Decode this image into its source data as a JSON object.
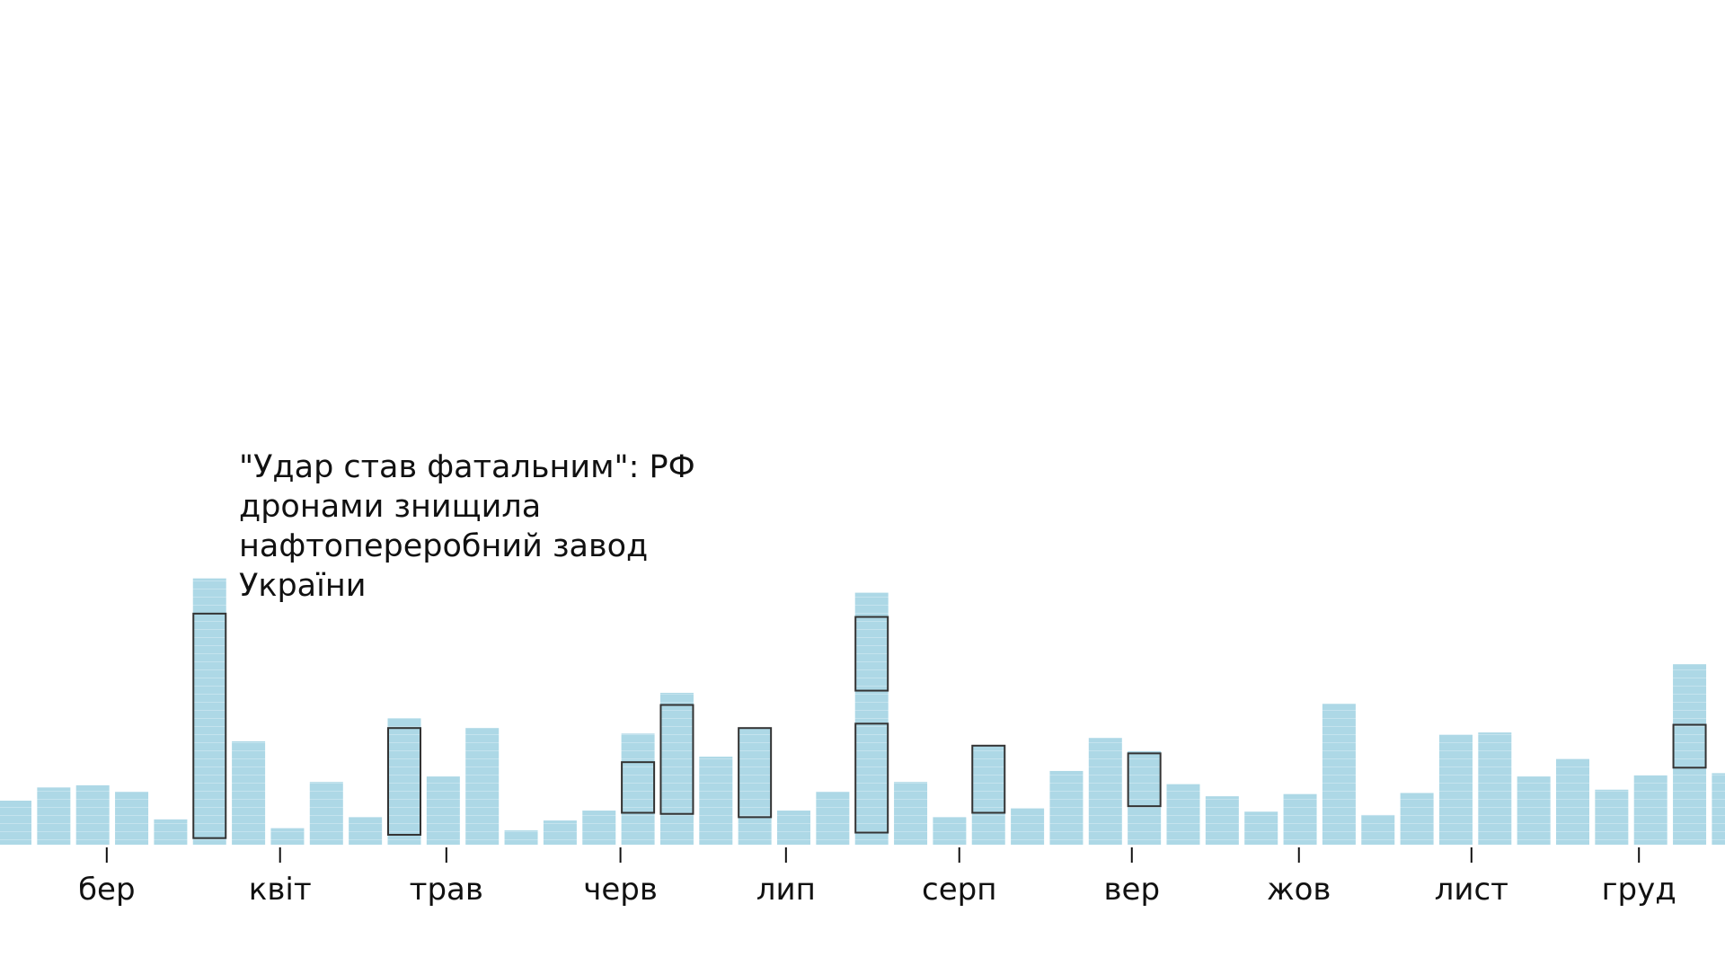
{
  "chart_data": {
    "type": "bar",
    "title": "",
    "xlabel": "",
    "ylabel": "",
    "bar_color": "#add8e6",
    "highlight_stroke": "#333333",
    "values": [
      40,
      52,
      54,
      48,
      23,
      242,
      94,
      15,
      57,
      25,
      115,
      62,
      106,
      13,
      22,
      31,
      101,
      138,
      80,
      106,
      31,
      48,
      229,
      57,
      25,
      90,
      33,
      67,
      97,
      85,
      55,
      44,
      30,
      46,
      128,
      27,
      47,
      100,
      102,
      62,
      78,
      50,
      63,
      164,
      65
    ],
    "highlights": [
      {
        "bar": 5,
        "from": 6,
        "to": 210
      },
      {
        "bar": 10,
        "from": 9,
        "to": 106
      },
      {
        "bar": 16,
        "from": 29,
        "to": 75
      },
      {
        "bar": 17,
        "from": 28,
        "to": 127
      },
      {
        "bar": 19,
        "from": 25,
        "to": 106
      },
      {
        "bar": 22,
        "from": 140,
        "to": 207
      },
      {
        "bar": 22,
        "from": 11,
        "to": 110
      },
      {
        "bar": 25,
        "from": 29,
        "to": 90
      },
      {
        "bar": 29,
        "from": 35,
        "to": 83
      },
      {
        "bar": 43,
        "from": 70,
        "to": 109
      }
    ],
    "ticks": [
      {
        "label": "бер",
        "at": 2.36
      },
      {
        "label": "квіт",
        "at": 6.81
      },
      {
        "label": "трав",
        "at": 11.08
      },
      {
        "label": "черв",
        "at": 15.55
      },
      {
        "label": "лип",
        "at": 19.8
      },
      {
        "label": "серп",
        "at": 24.25
      },
      {
        "label": "вер",
        "at": 28.68
      },
      {
        "label": "жов",
        "at": 32.97
      },
      {
        "label": "лист",
        "at": 37.4
      },
      {
        "label": "груд",
        "at": 41.7
      }
    ],
    "annotation": {
      "bar": 5,
      "lines": [
        "\"Удар став фатальним\": РФ",
        "дронами знищила",
        "нафтопереробний завод",
        "України"
      ]
    }
  }
}
